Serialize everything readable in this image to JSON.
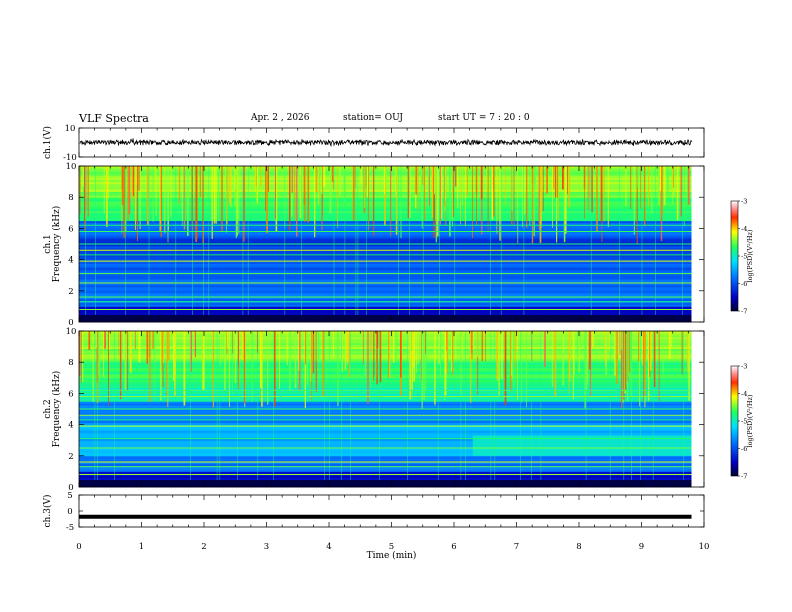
{
  "header": {
    "title": "VLF Spectra",
    "date": "Apr. 2 , 2026",
    "station": "station= OUJ",
    "start_ut": "start  UT =   7 : 20 : 0"
  },
  "chart_data": [
    {
      "type": "line",
      "panel": "ch.1 waveform",
      "ylabel": "ch.1(V)",
      "ylim": [
        -10,
        10
      ],
      "yticks": [
        10,
        -10
      ],
      "xlim": [
        0,
        10
      ],
      "series": [
        {
          "description_values": "noise band centered near 0 V, amplitude about ±2 V",
          "center": 0,
          "amplitude": 2,
          "color": "#000000"
        }
      ]
    },
    {
      "type": "heatmap",
      "panel": "ch.1 spectrogram",
      "ylabel": "ch.1",
      "ylabel2": "Frequency (kHz)",
      "ylim": [
        0,
        10
      ],
      "yticks": [
        0,
        2,
        4,
        6,
        8,
        10
      ],
      "xlim": [
        0,
        10
      ],
      "colorbar": {
        "label": "log(PSD)(V²/Hz)",
        "range": [
          -7,
          -3
        ],
        "ticks": [
          -3,
          -4,
          -5,
          -6,
          -7
        ]
      }
    },
    {
      "type": "heatmap",
      "panel": "ch.2 spectrogram",
      "ylabel": "ch.2",
      "ylabel2": "Frequency (kHz)",
      "ylim": [
        0,
        10
      ],
      "yticks": [
        0,
        2,
        4,
        6,
        8,
        10
      ],
      "xlim": [
        0,
        10
      ],
      "colorbar": {
        "label": "log(PSD)(V²/Hz)",
        "range": [
          -7,
          -3
        ],
        "ticks": [
          -3,
          -4,
          -5,
          -6,
          -7
        ]
      }
    },
    {
      "type": "line",
      "panel": "ch.3 waveform",
      "ylabel": "ch.3(V)",
      "ylim": [
        -5,
        5
      ],
      "yticks": [
        5,
        0,
        -5
      ],
      "xlim": [
        0,
        10
      ],
      "xlabel": "Time (min)",
      "xticks": [
        0,
        1,
        2,
        3,
        4,
        5,
        6,
        7,
        8,
        9,
        10
      ],
      "series": [
        {
          "description_values": "flat line at about -1.8 V",
          "value": -1.8,
          "color": "#000000"
        }
      ]
    }
  ]
}
